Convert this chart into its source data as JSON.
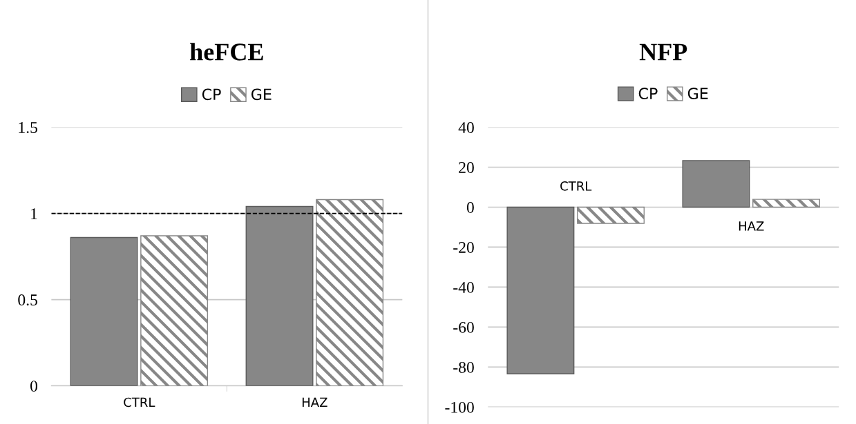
{
  "chart_data": [
    {
      "type": "bar",
      "title": "heFCE",
      "categories": [
        "CTRL",
        "HAZ"
      ],
      "series": [
        {
          "name": "CP",
          "color": "#878787",
          "values": [
            0.86,
            1.04
          ]
        },
        {
          "name": "GE",
          "color": "#878787",
          "values": [
            0.87,
            1.08
          ]
        }
      ],
      "ylim": [
        0,
        1.5
      ],
      "yticks": [
        0,
        0.5,
        1,
        1.5
      ],
      "grid": "y",
      "legend": "top",
      "ref_lines": [
        {
          "axis": "y",
          "value": 1,
          "color": "#000000",
          "line_style": "dashed"
        }
      ]
    },
    {
      "type": "bar",
      "title": "NFP",
      "categories": [
        "CTRL",
        "HAZ"
      ],
      "series": [
        {
          "name": "CP",
          "color": "#878787",
          "values": [
            -83.4,
            23.3
          ]
        },
        {
          "name": "GE",
          "color": "#878787",
          "values": [
            -8.1,
            3.9
          ]
        }
      ],
      "ylim": [
        -100,
        40
      ],
      "yticks": [
        -100,
        -80,
        -60,
        -40,
        -20,
        0,
        20,
        40
      ],
      "grid": "y",
      "legend": "top"
    }
  ]
}
